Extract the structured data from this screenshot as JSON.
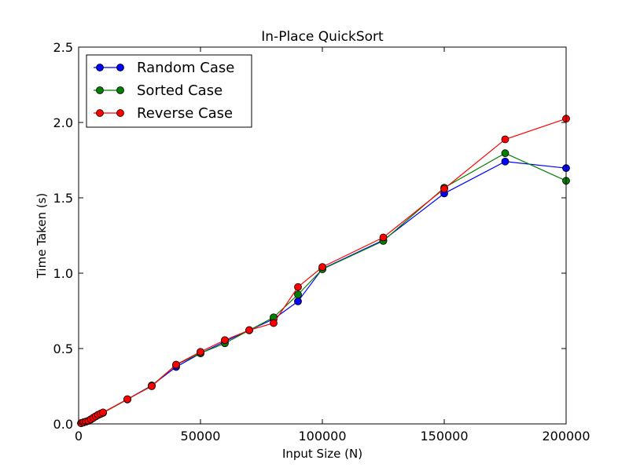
{
  "chart_data": {
    "type": "line",
    "title": "In-Place QuickSort",
    "xlabel": "Input Size (N)",
    "ylabel": "Time Taken (s)",
    "xlim": [
      0,
      200000
    ],
    "ylim": [
      0.0,
      2.5
    ],
    "xticks": [
      0,
      50000,
      100000,
      150000,
      200000
    ],
    "xtick_labels": [
      "0",
      "50000",
      "100000",
      "150000",
      "200000"
    ],
    "yticks": [
      0.0,
      0.5,
      1.0,
      1.5,
      2.0,
      2.5
    ],
    "ytick_labels": [
      "0.0",
      "0.5",
      "1.0",
      "1.5",
      "2.0",
      "2.5"
    ],
    "grid": false,
    "legend_position": "top-left",
    "x": [
      1000,
      2000,
      3000,
      4000,
      5000,
      6000,
      7000,
      8000,
      9000,
      10000,
      20000,
      30000,
      40000,
      50000,
      60000,
      70000,
      80000,
      90000,
      100000,
      125000,
      150000,
      175000,
      200000
    ],
    "series": [
      {
        "name": "Random Case",
        "color": "#0000ff",
        "values": [
          0.005,
          0.01,
          0.015,
          0.02,
          0.03,
          0.04,
          0.05,
          0.06,
          0.067,
          0.075,
          0.163,
          0.255,
          0.378,
          0.468,
          0.547,
          0.622,
          0.696,
          0.813,
          1.029,
          1.219,
          1.529,
          1.741,
          1.697
        ]
      },
      {
        "name": "Sorted Case",
        "color": "#008000",
        "values": [
          0.005,
          0.01,
          0.015,
          0.02,
          0.03,
          0.04,
          0.05,
          0.06,
          0.066,
          0.073,
          0.162,
          0.254,
          0.392,
          0.469,
          0.535,
          0.621,
          0.707,
          0.858,
          1.026,
          1.214,
          1.567,
          1.796,
          1.613
        ]
      },
      {
        "name": "Reverse Case",
        "color": "#ff0000",
        "values": [
          0.005,
          0.01,
          0.015,
          0.02,
          0.03,
          0.04,
          0.05,
          0.06,
          0.068,
          0.076,
          0.164,
          0.25,
          0.393,
          0.478,
          0.556,
          0.622,
          0.669,
          0.908,
          1.041,
          1.237,
          1.56,
          1.888,
          2.025
        ]
      }
    ]
  }
}
